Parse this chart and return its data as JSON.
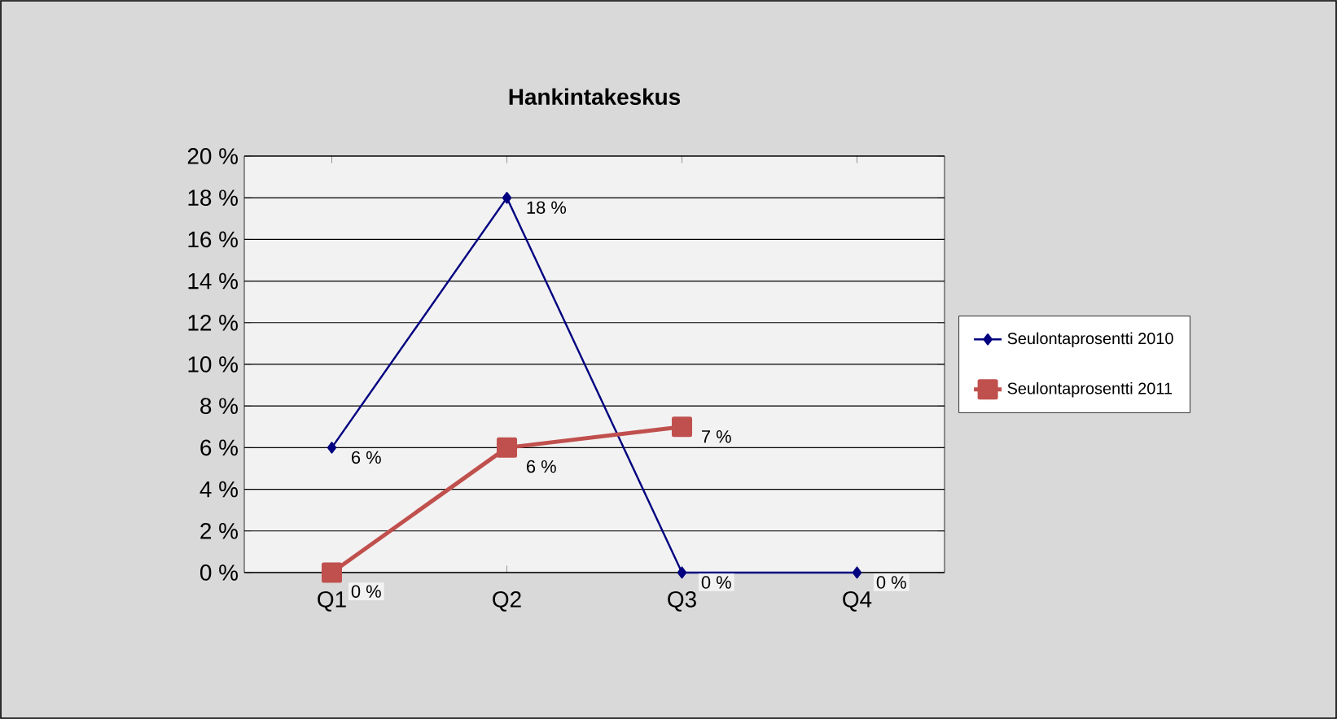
{
  "chart_data": {
    "type": "line",
    "title": "Hankintakeskus",
    "categories": [
      "Q1",
      "Q2",
      "Q3",
      "Q4"
    ],
    "series": [
      {
        "name": "Seulontaprosentti  2010",
        "color": "#000080",
        "marker": "diamond",
        "values": [
          6,
          18,
          0,
          0
        ],
        "value_labels": [
          "6 %",
          "18 %",
          "0 %",
          "0 %"
        ]
      },
      {
        "name": "Seulontaprosentti  2011",
        "color": "#c0504d",
        "marker": "square",
        "values": [
          0,
          6,
          7,
          null
        ],
        "value_labels": [
          "0 %",
          "6 %",
          "7 %",
          null
        ]
      }
    ],
    "ylim": [
      0,
      20
    ],
    "yticks": [
      {
        "value": 0,
        "label": "0 %"
      },
      {
        "value": 2,
        "label": "2 %"
      },
      {
        "value": 4,
        "label": "4 %"
      },
      {
        "value": 6,
        "label": "6 %"
      },
      {
        "value": 8,
        "label": "8 %"
      },
      {
        "value": 10,
        "label": "10 %"
      },
      {
        "value": 12,
        "label": "12 %"
      },
      {
        "value": 14,
        "label": "14 %"
      },
      {
        "value": 16,
        "label": "16 %"
      },
      {
        "value": 18,
        "label": "18 %"
      },
      {
        "value": 20,
        "label": "20 %"
      }
    ],
    "grid": "y",
    "legend": "right",
    "line_style": "solid"
  }
}
